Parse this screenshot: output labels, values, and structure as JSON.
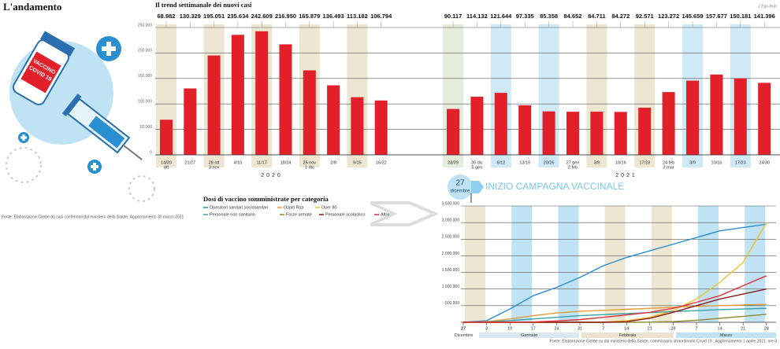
{
  "title": "L'andamento",
  "credit": "L'Ego-Hub",
  "vial_label": [
    "VACCINO",
    "COVID 19"
  ],
  "campaign_start": {
    "day": "27",
    "month": "dicembre",
    "label": "INIZIO CAMPAGNA VACCINALE"
  },
  "chart_data": [
    {
      "type": "bar",
      "title": "Il trend settimanale dei nuovi casi",
      "years": [
        "2020",
        "2021"
      ],
      "categories": [
        [
          "14/20",
          "ott"
        ],
        [
          "21/27"
        ],
        [
          "28 ott",
          "3 nov"
        ],
        [
          "4/10"
        ],
        [
          "11/17"
        ],
        [
          "18/24"
        ],
        [
          "25 nov",
          "1 dic"
        ],
        [
          "2/8"
        ],
        [
          "9/15"
        ],
        [
          "16/22"
        ],
        [
          "23/29"
        ],
        [
          "30 dic",
          "5 gen"
        ],
        [
          "6/12"
        ],
        [
          "13/19"
        ],
        [
          "20/26"
        ],
        [
          "27 gen",
          "2 feb"
        ],
        [
          "3/9"
        ],
        [
          "10/16"
        ],
        [
          "17/23"
        ],
        [
          "24 feb",
          "2 mar"
        ],
        [
          "3/9"
        ],
        [
          "10/16"
        ],
        [
          "17/23"
        ],
        [
          "24/30"
        ]
      ],
      "values": [
        68982,
        130329,
        195051,
        235634,
        242609,
        216950,
        165879,
        136493,
        113182,
        106794,
        90117,
        114132,
        121644,
        97335,
        85358,
        84652,
        84711,
        84272,
        92571,
        123272,
        145659,
        157677,
        150181,
        141396
      ],
      "value_labels": [
        "68.982",
        "130.329",
        "195.051",
        "235.634",
        "242.609",
        "216.950",
        "165.879",
        "136.493",
        "113.182",
        "106.794",
        "90.117",
        "114.132",
        "121.644",
        "97.335",
        "85.358",
        "84.652",
        "84.711",
        "84.272",
        "92.571",
        "123.272",
        "145.659",
        "157.677",
        "150.181",
        "141.396"
      ],
      "color": "#e3202a",
      "ylim": [
        0,
        250000
      ],
      "yticks": [
        0,
        {
          "value": 50000,
          "label": "50.000"
        },
        {
          "value": 100000,
          "label": "100.000"
        },
        {
          "value": 150000,
          "label": "150.000"
        },
        {
          "value": 200000,
          "label": "200.000"
        },
        {
          "value": 250000,
          "label": "250.000"
        }
      ],
      "grid": true,
      "source": "Fonte: Elaborazione Gimbe da casi confermati dal ministero della Salute. Aggiornamento 30 marzo 2021"
    },
    {
      "type": "line",
      "title": "Dosi di vaccino somministrate per categoria",
      "categories": [
        "27",
        "3",
        "10",
        "17",
        "24",
        "31",
        "7",
        "14",
        "21",
        "28",
        "7",
        "14",
        "21",
        "28"
      ],
      "months": [
        "Dicembre",
        "Gennaio",
        "Febbraio",
        "Marzo"
      ],
      "series": [
        {
          "name": "Operatori sanitari sociosanitari",
          "color": "#2b8fd1",
          "values": [
            0,
            50000,
            400000,
            800000,
            1050000,
            1350000,
            1700000,
            1950000,
            2150000,
            2350000,
            2550000,
            2750000,
            2850000,
            2950000
          ]
        },
        {
          "name": "Ospiti Rsa",
          "color": "#e89a3c",
          "values": [
            0,
            20000,
            100000,
            200000,
            280000,
            330000,
            360000,
            390000,
            420000,
            450000,
            480000,
            500000,
            520000,
            540000
          ]
        },
        {
          "name": "Over 80",
          "color": "#efc12a",
          "values": [
            0,
            0,
            0,
            0,
            0,
            0,
            0,
            50000,
            150000,
            350000,
            700000,
            1200000,
            1800000,
            3000000
          ]
        },
        {
          "name": "Personale non sanitario",
          "color": "#3aa3a6",
          "values": [
            0,
            10000,
            50000,
            100000,
            150000,
            200000,
            230000,
            260000,
            290000,
            320000,
            350000,
            380000,
            400000,
            420000
          ]
        },
        {
          "name": "Forze armate",
          "color": "#8a8a2e",
          "values": [
            0,
            0,
            0,
            0,
            0,
            0,
            0,
            0,
            5000,
            20000,
            60000,
            120000,
            180000,
            240000
          ]
        },
        {
          "name": "Personale scolastico",
          "color": "#8b1a1a",
          "values": [
            0,
            0,
            0,
            0,
            0,
            0,
            0,
            20000,
            120000,
            300000,
            500000,
            700000,
            850000,
            1000000
          ]
        },
        {
          "name": "Altro",
          "color": "#e0303a",
          "values": [
            0,
            0,
            0,
            10000,
            40000,
            80000,
            150000,
            220000,
            300000,
            420000,
            600000,
            800000,
            1100000,
            1400000
          ]
        }
      ],
      "ylim": [
        0,
        3500000
      ],
      "yticks": [
        {
          "value": 500000,
          "label": "500.000"
        },
        {
          "value": 1000000,
          "label": "1.000.000"
        },
        {
          "value": 1500000,
          "label": "1.500.000"
        },
        {
          "value": 2000000,
          "label": "2.000.000"
        },
        {
          "value": 2500000,
          "label": "2.500.000"
        },
        {
          "value": 3000000,
          "label": "3.000.000"
        },
        {
          "value": 3500000,
          "label": "3.500.000"
        }
      ],
      "grid": true,
      "source": "Fonte: Elaborazione Gimbe su dai ministero della Salute, commissario straordinario Covid 19 . Aggiornamento 1 aprile 2021, ore 8"
    }
  ]
}
